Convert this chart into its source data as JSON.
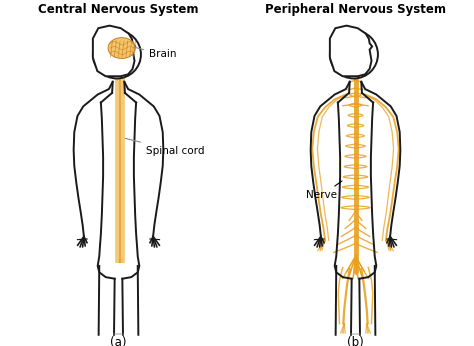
{
  "title_left": "Central Nervous System",
  "title_right": "Peripheral Nervous System",
  "label_a": "(a)",
  "label_b": "(b)",
  "label_brain": "Brain",
  "label_spinal": "Spinal cord",
  "label_nerve": "Nerve",
  "body_edge_color": "#1a1a1a",
  "body_fill_color": "#ffffff",
  "nerve_color": "#E8A020",
  "nerve_fill": "#F5C060",
  "bg_color": "#ffffff",
  "body_lw": 1.4,
  "nerve_lw": 0.9,
  "title_fontsize": 8.5,
  "label_fontsize": 7.5
}
